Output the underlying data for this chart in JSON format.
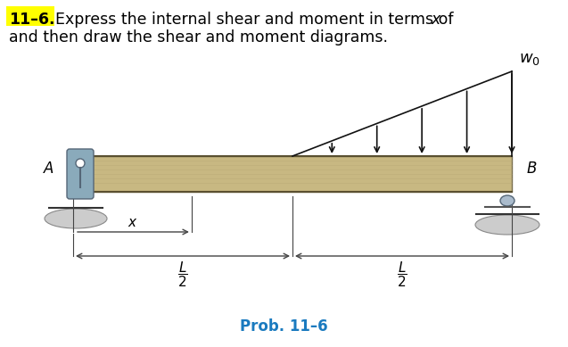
{
  "title_number": "11–6.",
  "title_text": "  Express the internal shear and moment in terms of ",
  "title_italic": "x",
  "subtitle": "and then draw the shear and moment diagrams.",
  "prob_label": "Prob. 11–6",
  "beam_color": "#c8b882",
  "beam_edge_color": "#7a7050",
  "label_A": "A",
  "label_B": "B",
  "background_color": "#ffffff",
  "title_highlight_color": "#ffff00",
  "title_fontsize": 12.5,
  "prob_color": "#1a7abf",
  "arrow_color": "#111111",
  "dim_color": "#444444",
  "support_color": "#8aaabb",
  "support_edge": "#556677"
}
